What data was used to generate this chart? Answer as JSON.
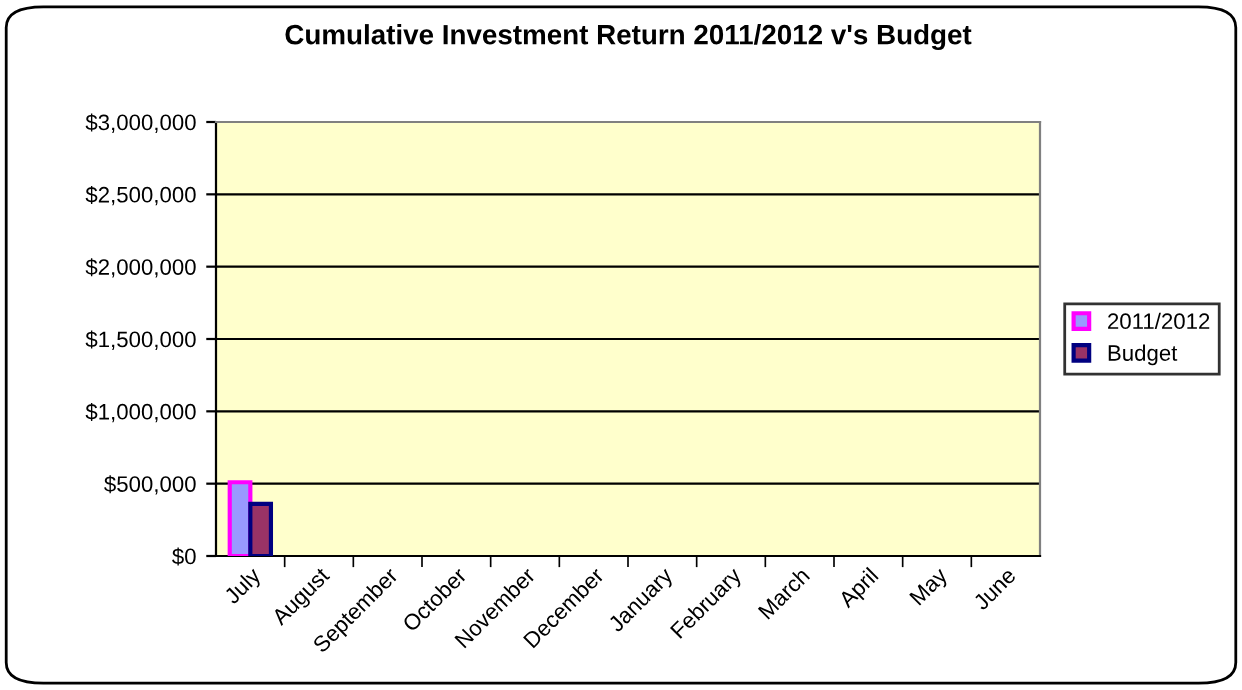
{
  "chart_data": {
    "type": "bar",
    "title": "Cumulative Investment Return 2011/2012 v's Budget",
    "categories": [
      "July",
      "August",
      "September",
      "October",
      "November",
      "December",
      "January",
      "February",
      "March",
      "April",
      "May",
      "June"
    ],
    "series": [
      {
        "name": "2011/2012",
        "color": "#9999ff",
        "values": [
          510000,
          null,
          null,
          null,
          null,
          null,
          null,
          null,
          null,
          null,
          null,
          null
        ]
      },
      {
        "name": "Budget",
        "color": "#993366",
        "values": [
          360000,
          null,
          null,
          null,
          null,
          null,
          null,
          null,
          null,
          null,
          null,
          null
        ]
      }
    ],
    "ylim": [
      0,
      3000000
    ],
    "yticks": [
      {
        "value": 0,
        "label": "$0"
      },
      {
        "value": 500000,
        "label": "$500,000"
      },
      {
        "value": 1000000,
        "label": "$1,000,000"
      },
      {
        "value": 1500000,
        "label": "$1,500,000"
      },
      {
        "value": 2000000,
        "label": "$2,000,000"
      },
      {
        "value": 2500000,
        "label": "$2,500,000"
      },
      {
        "value": 3000000,
        "label": "$3,000,000"
      }
    ],
    "grid": "y",
    "legend": "right"
  }
}
